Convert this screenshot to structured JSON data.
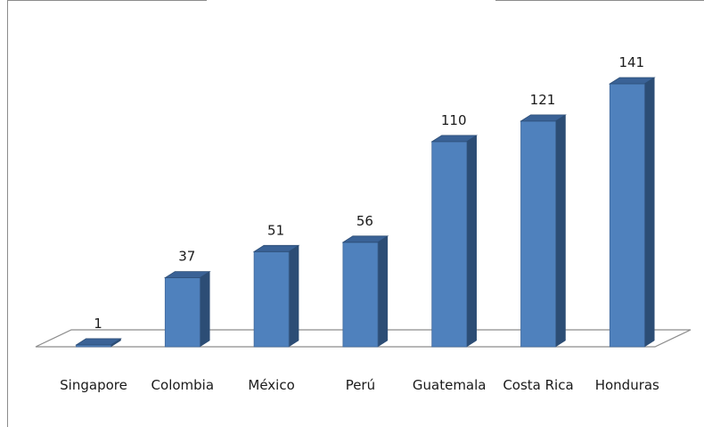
{
  "chart_data": {
    "type": "bar",
    "title": "",
    "xlabel": "",
    "ylabel": "",
    "categories": [
      "Singapore",
      "Colombia",
      "México",
      "Perú",
      "Guatemala",
      "Costa Rica",
      "Honduras"
    ],
    "values": [
      1,
      37,
      51,
      56,
      110,
      121,
      141
    ],
    "data_labels": [
      "1",
      "37",
      "51",
      "56",
      "110",
      "121",
      "141"
    ],
    "ylim": [
      0,
      141
    ],
    "grid": false,
    "legend": "none",
    "style": "3d-column",
    "colors": {
      "bar_front": "#4F81BD",
      "bar_side": "#2C4D75",
      "bar_top": "#3A6296",
      "floor": "#FFFFFF",
      "floor_edge": "#8C8C8C"
    }
  }
}
